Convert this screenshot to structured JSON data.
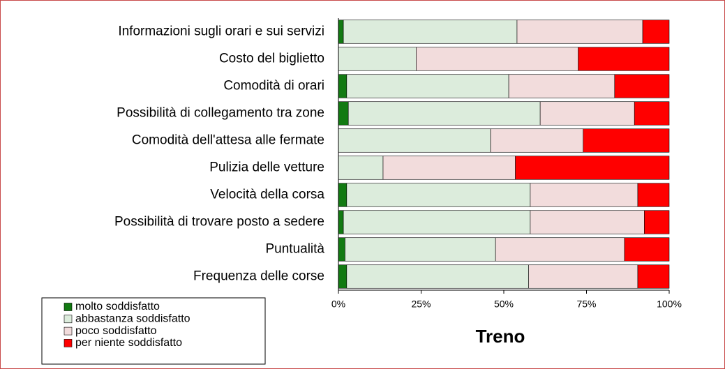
{
  "chart_data": {
    "type": "bar",
    "orientation": "horizontal",
    "stacked": true,
    "xlabel": "Treno",
    "categories": [
      "Informazioni sugli orari e sui servizi",
      "Costo del biglietto",
      "Comodità di orari",
      "Possibilità di collegamento tra zone",
      "Comodità dell'attesa alle fermate",
      "Pulizia delle vetture",
      "Velocità della corsa",
      "Possibilità di trovare posto a sedere",
      "Puntualità",
      "Frequenza delle corse"
    ],
    "series": [
      {
        "name": "molto soddisfatto",
        "color": "#127a12",
        "values": [
          1.5,
          0,
          2.5,
          3,
          0,
          0,
          2.5,
          1.5,
          2,
          2.5
        ]
      },
      {
        "name": "abbastanza soddisfatto",
        "color": "#dcecdc",
        "values": [
          52.5,
          23.5,
          49,
          58,
          46,
          13.5,
          55.5,
          56.5,
          45.5,
          55
        ]
      },
      {
        "name": "poco soddisfatto",
        "color": "#f2dcdc",
        "values": [
          38,
          49,
          32,
          28.5,
          28,
          40,
          32.5,
          34.5,
          39,
          33
        ]
      },
      {
        "name": "per niente soddisfatto",
        "color": "#ff0000",
        "values": [
          8,
          27.5,
          16.5,
          10.5,
          26,
          46.5,
          9.5,
          7.5,
          13.5,
          9.5
        ]
      }
    ],
    "xlim": [
      0,
      100
    ],
    "xticks": [
      {
        "value": 0,
        "label": "0%"
      },
      {
        "value": 25,
        "label": "25%"
      },
      {
        "value": 50,
        "label": "50%"
      },
      {
        "value": 75,
        "label": "75%"
      },
      {
        "value": 100,
        "label": "100%"
      }
    ]
  }
}
